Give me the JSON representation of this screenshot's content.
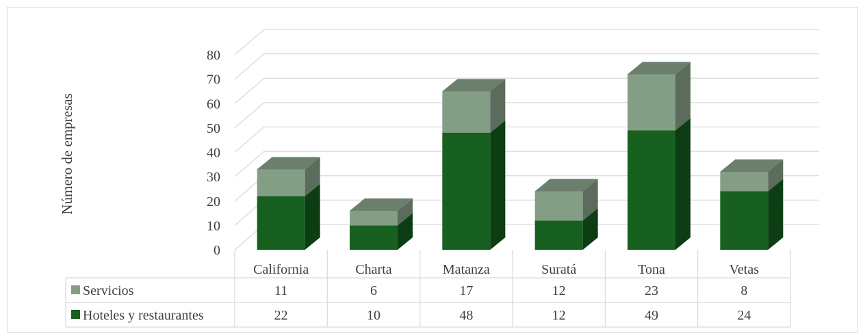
{
  "chart_data": {
    "type": "bar",
    "stacked": true,
    "style": "3d-column-with-data-table",
    "categories": [
      "California",
      "Charta",
      "Matanza",
      "Suratá",
      "Tona",
      "Vetas"
    ],
    "series": [
      {
        "name": "Hoteles y restaurantes",
        "values": [
          22,
          10,
          48,
          12,
          49,
          24
        ],
        "color": "#17601f",
        "side_color": "#0c3d13",
        "top_color": "#5a725d"
      },
      {
        "name": "Servicios",
        "values": [
          11,
          6,
          17,
          12,
          23,
          8
        ],
        "color": "#849e86",
        "side_color": "#5c6c5c",
        "top_color": "#6b7f6c"
      }
    ],
    "table_rows_order": [
      "Servicios",
      "Hoteles y restaurantes"
    ],
    "ylabel": "Número de empresas",
    "xlabel": "",
    "title": "",
    "ylim": [
      0,
      80
    ],
    "yticks": [
      0,
      10,
      20,
      30,
      40,
      50,
      60,
      70,
      80
    ],
    "grid": true,
    "legend": "data-table"
  }
}
